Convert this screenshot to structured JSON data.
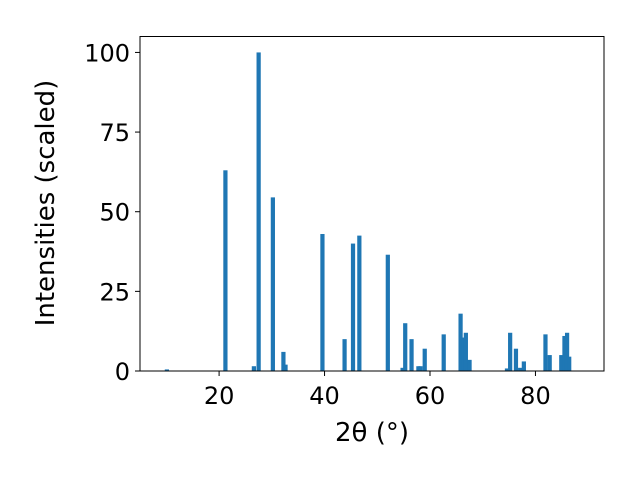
{
  "chart_data": {
    "type": "bar",
    "xlabel": "2θ (°)",
    "ylabel": "Intensities (scaled)",
    "xlim": [
      5,
      93
    ],
    "ylim": [
      0,
      105
    ],
    "x_ticks": [
      20,
      40,
      60,
      80
    ],
    "y_ticks": [
      0,
      25,
      50,
      75,
      100
    ],
    "bar_width": 0.8,
    "color": "#1f77b4",
    "grid": false,
    "x": [
      10.1,
      21.2,
      26.6,
      27.5,
      30.2,
      32.2,
      32.6,
      39.6,
      43.8,
      45.4,
      46.6,
      52.0,
      54.8,
      55.3,
      56.5,
      57.8,
      58.2,
      59.0,
      62.6,
      65.8,
      66.3,
      66.8,
      67.5,
      74.6,
      75.2,
      76.3,
      77.1,
      77.8,
      81.9,
      82.7,
      84.9,
      85.5,
      86.0,
      86.4
    ],
    "values": [
      0.5,
      63,
      1.5,
      100,
      54.5,
      6,
      2,
      43,
      10,
      40,
      42.5,
      36.5,
      1,
      15,
      10,
      1.5,
      1.5,
      7,
      11.5,
      18,
      10.5,
      12,
      3.5,
      0.8,
      12,
      7,
      1,
      3,
      11.5,
      5,
      5,
      11,
      12,
      4.5
    ]
  }
}
